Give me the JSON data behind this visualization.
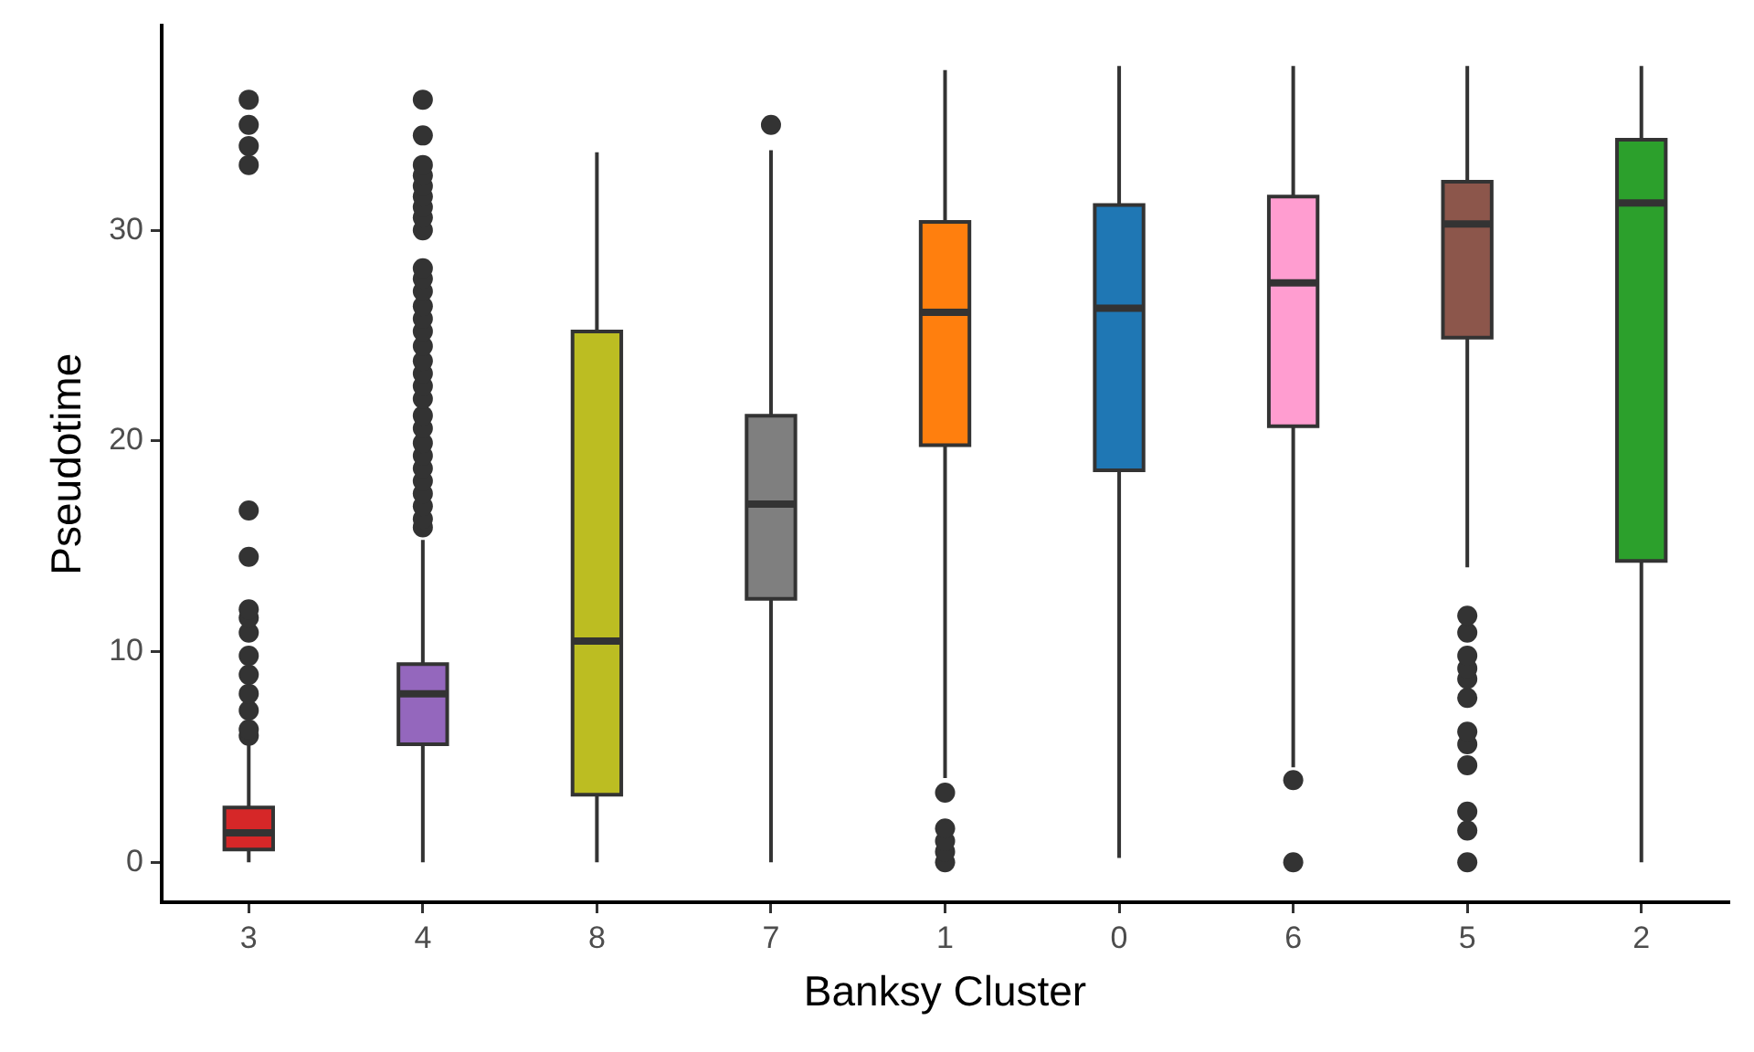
{
  "chart_data": {
    "type": "box",
    "xlabel": "Banksy Cluster",
    "ylabel": "Pseudotime",
    "categories": [
      "3",
      "4",
      "8",
      "7",
      "1",
      "0",
      "6",
      "5",
      "2"
    ],
    "colors": [
      "#d62728",
      "#9467bd",
      "#bcbd22",
      "#7f7f7f",
      "#ff7f0e",
      "#1f77b4",
      "#ff9dd0",
      "#8c564b",
      "#2ca02c"
    ],
    "ylim": [
      -1.9,
      39.7
    ],
    "yticks": [
      0,
      10,
      20,
      30
    ],
    "boxes": [
      {
        "low": 0,
        "q1": 0.6,
        "median": 1.4,
        "q3": 2.6,
        "high": 5.6,
        "outliers": [
          6.0,
          6.3,
          7.2,
          8.0,
          8.9,
          9.8,
          10.9,
          11.6,
          12.0,
          14.5,
          16.7,
          33.1,
          34.0,
          35.0,
          36.2
        ]
      },
      {
        "low": 0,
        "q1": 5.6,
        "median": 8.0,
        "q3": 9.4,
        "high": 15.3,
        "outliers": [
          15.9,
          16.3,
          16.9,
          17.5,
          18.1,
          18.7,
          19.3,
          19.9,
          20.6,
          21.2,
          22.0,
          22.6,
          23.2,
          23.8,
          24.5,
          25.2,
          25.8,
          26.4,
          27.1,
          27.7,
          28.2,
          30.0,
          30.6,
          31.1,
          31.6,
          32.1,
          32.6,
          33.1,
          34.5,
          36.2
        ]
      },
      {
        "low": 0,
        "q1": 3.2,
        "median": 10.5,
        "q3": 25.2,
        "high": 33.7
      },
      {
        "low": 0,
        "q1": 12.5,
        "median": 17.0,
        "q3": 21.2,
        "high": 33.8,
        "outliers": [
          35.0
        ]
      },
      {
        "low": 4.0,
        "q1": 19.8,
        "median": 26.1,
        "q3": 30.4,
        "high": 37.6,
        "outliers": [
          0.0,
          0.5,
          1.0,
          1.6,
          3.3
        ]
      },
      {
        "low": 0.2,
        "q1": 18.6,
        "median": 26.3,
        "q3": 31.2,
        "high": 37.8
      },
      {
        "low": 4.5,
        "q1": 20.7,
        "median": 27.5,
        "q3": 31.6,
        "high": 37.8,
        "outliers": [
          0.0,
          3.9
        ]
      },
      {
        "low": 14.0,
        "q1": 24.9,
        "median": 30.3,
        "q3": 32.3,
        "high": 37.8,
        "outliers": [
          0.0,
          1.5,
          2.4,
          4.6,
          5.6,
          6.2,
          7.8,
          8.7,
          9.2,
          9.8,
          10.9,
          11.7
        ]
      },
      {
        "low": 0,
        "q1": 14.3,
        "median": 31.3,
        "q3": 34.3,
        "high": 37.8
      }
    ]
  }
}
